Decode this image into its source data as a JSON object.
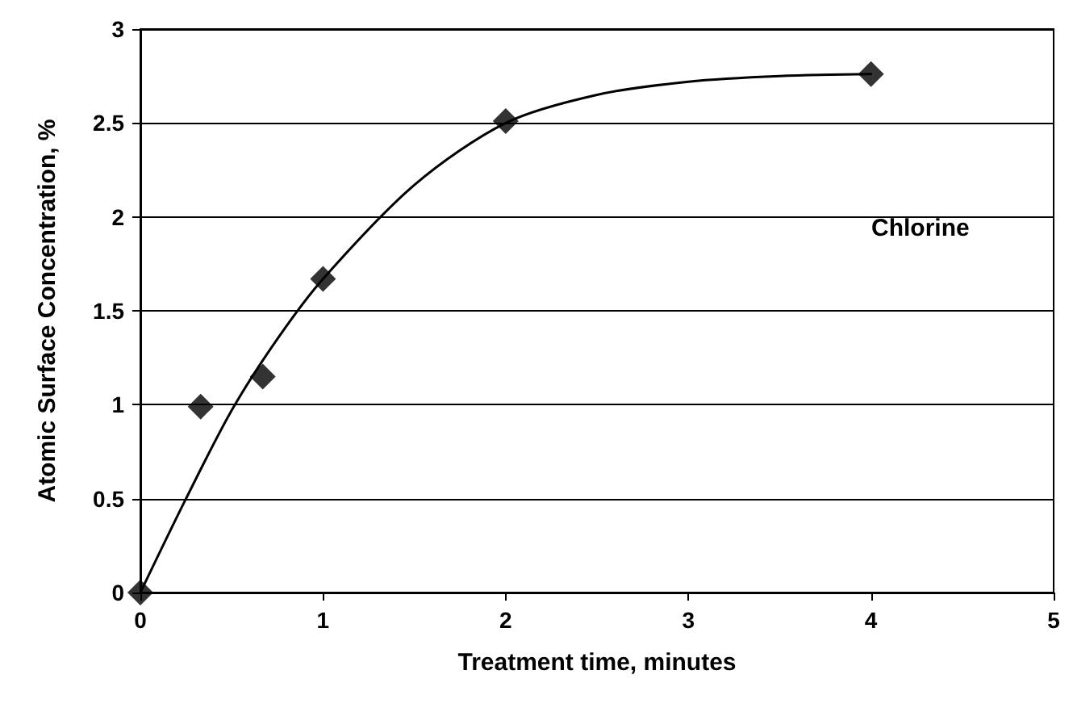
{
  "chart_data": {
    "type": "scatter",
    "xlabel": "Treatment time, minutes",
    "ylabel": "Atomic Surface Concentration, %",
    "annotations": [
      "Chlorine"
    ],
    "series": [
      {
        "color": "#000000",
        "marker": "diamond",
        "x": [
          0,
          0.33,
          0.67,
          1,
          2,
          4
        ],
        "values": [
          0,
          0.99,
          1.15,
          1.67,
          2.51,
          2.76
        ]
      },
      {
        "type": "line",
        "color": "#000000",
        "marker": "none",
        "line_style": "solid",
        "x": [
          0,
          0.25,
          0.5,
          0.75,
          1,
          1.5,
          2,
          2.5,
          3,
          3.5,
          4
        ],
        "values": [
          0,
          0.5,
          0.97,
          1.35,
          1.67,
          2.17,
          2.5,
          2.65,
          2.72,
          2.75,
          2.76
        ]
      }
    ],
    "xlim": [
      0,
      5
    ],
    "xticks": [
      0,
      1,
      2,
      3,
      4,
      5
    ],
    "ylim": [
      0,
      3
    ],
    "yticks": [
      0,
      0.5,
      1,
      1.5,
      2,
      2.5,
      3
    ],
    "grid": "y"
  }
}
